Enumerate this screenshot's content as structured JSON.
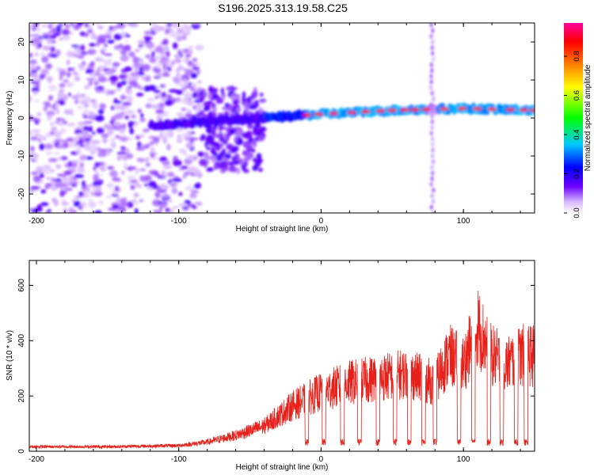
{
  "title": "S196.2025.313.19.58.C25",
  "chart_data": [
    {
      "type": "heatmap",
      "xlabel": "Height of straight line (km)",
      "ylabel": "Frequency (Hz)",
      "xlim": [
        -205,
        150
      ],
      "ylim": [
        -25,
        25
      ],
      "xticks": [
        -200,
        -100,
        0,
        100
      ],
      "yticks": [
        -20,
        -10,
        0,
        10,
        20
      ],
      "xtick_labels": [
        "-200",
        "-100",
        "0",
        "100"
      ],
      "ytick_labels": [
        "-20",
        "-10",
        "0",
        "10",
        "20"
      ],
      "colorbar": {
        "label": "Normalized spectral amplitude",
        "range": [
          0,
          0.97
        ],
        "ticks": [
          0.0,
          0.2,
          0.4,
          0.6,
          0.8
        ],
        "tick_labels": [
          "0.0",
          "0.2",
          "0.4",
          "0.6",
          "0.8"
        ],
        "colors": [
          "#ffffff",
          "#d6b4ff",
          "#6a00ff",
          "#0000ff",
          "#00c8ff",
          "#00ff00",
          "#ffff00",
          "#ff8000",
          "#ff0000",
          "#ff00a0"
        ]
      },
      "band": {
        "description_points_x": [
          -40,
          0,
          50,
          100,
          150
        ],
        "center_freq": [
          0,
          1,
          2,
          2.5,
          2
        ]
      }
    },
    {
      "type": "line",
      "xlabel": "Height of straight line (km)",
      "ylabel": "SNR (10 * v/v)",
      "xlim": [
        -205,
        150
      ],
      "ylim": [
        0,
        690
      ],
      "xticks": [
        -200,
        -100,
        0,
        100
      ],
      "yticks": [
        0,
        200,
        400,
        600
      ],
      "xtick_labels": [
        "-200",
        "-100",
        "0",
        "100"
      ],
      "ytick_labels": [
        "0",
        "200",
        "400",
        "600"
      ],
      "series": [
        {
          "name": "SNR",
          "color": "#e8201a",
          "envelope_x": [
            -205,
            -150,
            -100,
            -80,
            -60,
            -40,
            -20,
            0,
            20,
            40,
            60,
            80,
            90,
            100,
            110,
            120,
            130,
            140,
            150
          ],
          "envelope_y": [
            20,
            20,
            25,
            40,
            70,
            110,
            200,
            260,
            300,
            320,
            340,
            300,
            420,
            380,
            550,
            420,
            380,
            420,
            420
          ],
          "dips_x": [
            -10,
            2,
            15,
            27,
            40,
            52,
            62,
            72,
            80,
            97,
            107,
            118,
            127,
            137,
            144
          ]
        }
      ]
    }
  ]
}
